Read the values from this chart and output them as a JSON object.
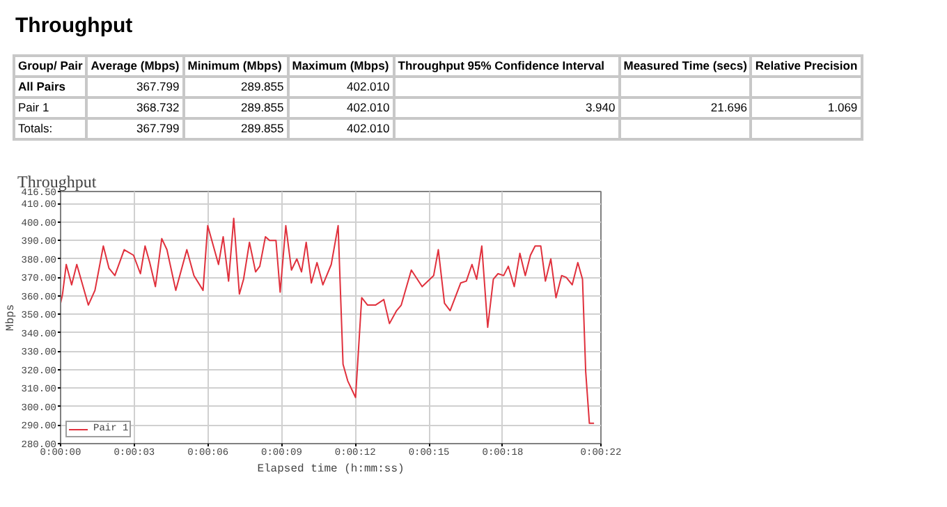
{
  "chart_data": {
    "type": "line",
    "title": "Throughput",
    "xlabel": "Elapsed time (h:mm:ss)",
    "ylabel": "Mbps",
    "annotations": [
      "Throughput",
      "Group/ Pair",
      "Average (Mbps)",
      "Minimum (Mbps)",
      "Maximum (Mbps)",
      "Throughput 95% Confidence Interval",
      "Measured Time (secs)",
      "Relative Precision",
      "All Pairs",
      "367.799",
      "289.855",
      "402.010",
      "Pair 1",
      "368.732",
      "289.855",
      "402.010",
      "3.940",
      "21.696",
      "1.069",
      "Totals:",
      "367.799",
      "289.855",
      "402.010"
    ],
    "xlim": [
      0,
      22
    ],
    "ylim": [
      280,
      416.5
    ],
    "xticks": [
      {
        "value": 0,
        "label": "0:00:00"
      },
      {
        "value": 3,
        "label": "0:00:03"
      },
      {
        "value": 6,
        "label": "0:00:06"
      },
      {
        "value": 9,
        "label": "0:00:09"
      },
      {
        "value": 12,
        "label": "0:00:12"
      },
      {
        "value": 15,
        "label": "0:00:15"
      },
      {
        "value": 18,
        "label": "0:00:18"
      },
      {
        "value": 22,
        "label": "0:00:22"
      }
    ],
    "yticks": [
      {
        "value": 280,
        "label": "280.00"
      },
      {
        "value": 290,
        "label": "290.00"
      },
      {
        "value": 300,
        "label": "300.00"
      },
      {
        "value": 310,
        "label": "310.00"
      },
      {
        "value": 320,
        "label": "320.00"
      },
      {
        "value": 330,
        "label": "330.00"
      },
      {
        "value": 340,
        "label": "340.00"
      },
      {
        "value": 350,
        "label": "350.00"
      },
      {
        "value": 360,
        "label": "360.00"
      },
      {
        "value": 370,
        "label": "370.00"
      },
      {
        "value": 380,
        "label": "380.00"
      },
      {
        "value": 390,
        "label": "390.00"
      },
      {
        "value": 400,
        "label": "400.00"
      },
      {
        "value": 410,
        "label": "410.00"
      },
      {
        "value": 416.5,
        "label": "416.50"
      }
    ],
    "grid": true,
    "legend": "bottom",
    "marker": "none",
    "line_style": "solid",
    "series": [
      {
        "name": "Pair 1",
        "color": "#e0303c",
        "x": [
          0,
          0.08,
          0.23,
          0.45,
          0.66,
          1.13,
          1.4,
          1.74,
          1.97,
          2.21,
          2.59,
          2.97,
          3.25,
          3.44,
          3.63,
          3.86,
          4.12,
          4.33,
          4.69,
          5.14,
          5.43,
          5.8,
          5.99,
          6.43,
          6.62,
          6.84,
          7.05,
          7.28,
          7.45,
          7.69,
          7.94,
          8.11,
          8.34,
          8.51,
          8.77,
          8.94,
          9.17,
          9.4,
          9.62,
          9.81,
          10.0,
          10.21,
          10.44,
          10.68,
          11.02,
          11.3,
          11.5,
          11.69,
          12.01,
          12.26,
          12.5,
          12.82,
          13.16,
          13.39,
          13.68,
          13.87,
          14.28,
          14.72,
          15.19,
          15.38,
          15.63,
          15.86,
          16.29,
          16.52,
          16.75,
          16.94,
          17.15,
          17.39,
          17.62,
          17.81,
          18.04,
          18.23,
          18.47,
          18.7,
          18.92,
          19.13,
          19.32,
          19.55,
          19.74,
          19.96,
          20.17,
          20.4,
          20.59,
          20.83,
          21.06,
          21.25,
          21.38,
          21.53,
          21.72
        ],
        "values": [
          356,
          361,
          377,
          366,
          377,
          355,
          363,
          387,
          375,
          371,
          385,
          382,
          372,
          387,
          378,
          365,
          391,
          385,
          363,
          385,
          371,
          363,
          398,
          377,
          392,
          368,
          402,
          361,
          369,
          389,
          373,
          376,
          392,
          390,
          390,
          362,
          398,
          374,
          380,
          373,
          389,
          367,
          378,
          366,
          377,
          398,
          323,
          314,
          305,
          359,
          355,
          355,
          358,
          345,
          352,
          355,
          374,
          365,
          371,
          385,
          356,
          352,
          367,
          368,
          377,
          369,
          387,
          343,
          369,
          372,
          371,
          376,
          365,
          383,
          371,
          382,
          387,
          387,
          368,
          380,
          359,
          371,
          370,
          366,
          378,
          369,
          319,
          291,
          291
        ]
      }
    ]
  }
}
